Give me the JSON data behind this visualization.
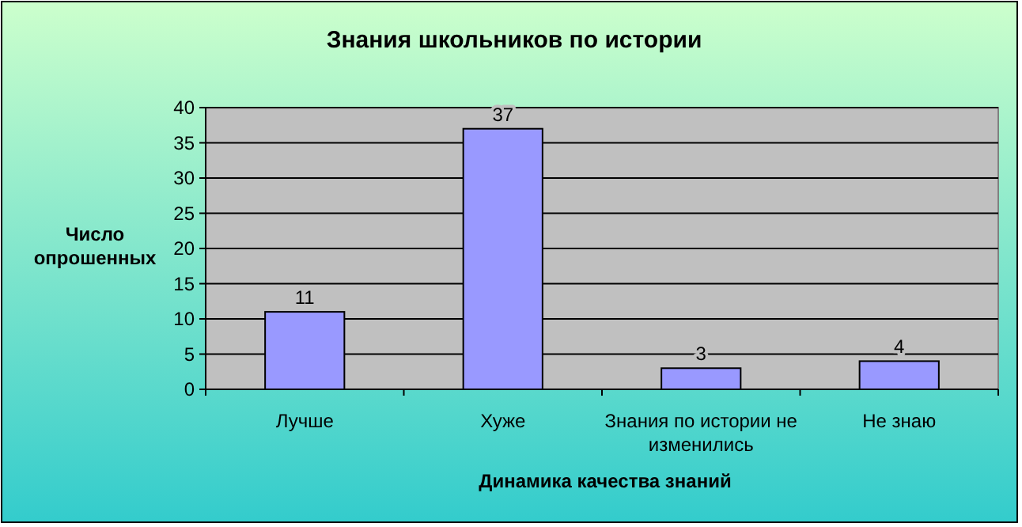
{
  "chart_data": {
    "type": "bar",
    "title": "Знания школьников по истории",
    "xlabel": "Динамика качества знаний",
    "ylabel": "Число опрошенных",
    "categories": [
      "Лучше",
      "Хуже",
      "Знания по истории не изменились",
      "Не знаю"
    ],
    "values": [
      11,
      37,
      3,
      4
    ],
    "color": "#9999ff",
    "ylim": [
      0,
      40
    ],
    "yticks": [
      0,
      5,
      10,
      15,
      20,
      25,
      30,
      35,
      40
    ],
    "grid": "y",
    "data_labels": true
  }
}
